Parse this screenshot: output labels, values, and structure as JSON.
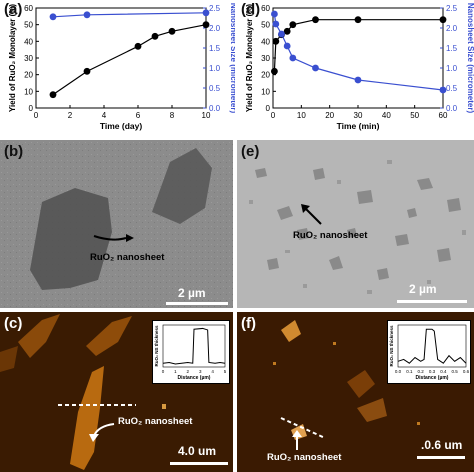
{
  "panels": {
    "a": {
      "tag": "(a)",
      "ylabel_left": "Yield of RuO₂ Monolayer (%)",
      "ylabel_right": "Nanosheet Size (micrometer)",
      "xlabel": "Time (day)"
    },
    "b": {
      "tag": "(b)",
      "label": "RuO₂ nanosheet",
      "scale": "2 µm"
    },
    "c": {
      "tag": "(c)",
      "label": "RuO₂ nanosheet",
      "scale": "4.0 um",
      "inset_ylabel": "RuO₂ NS thickness",
      "inset_xlabel": "Distance (µm)"
    },
    "d": {
      "tag": "(d)",
      "ylabel_left": "Yield of RuO₂ Monolayer (%)",
      "ylabel_right": "Nanosheet Size (micrometer)",
      "xlabel": "Time (min)"
    },
    "e": {
      "tag": "(e)",
      "label": "RuO₂ nanosheet",
      "scale": "2 µm"
    },
    "f": {
      "tag": "(f)",
      "label": "RuO₂ nanosheet",
      "scale": ".0.6 um",
      "inset_ylabel": "RuO₂ NS thickness",
      "inset_xlabel": "Distance (µm)"
    }
  },
  "chart_data": [
    {
      "type": "line",
      "panel": "a",
      "xlabel": "Time (day)",
      "ylabel": "Yield of RuO₂ Monolayer (%)",
      "y2label": "Nanosheet Size (micrometer)",
      "xlim": [
        0,
        10
      ],
      "ylim": [
        0,
        60
      ],
      "y2lim": [
        0,
        2.5
      ],
      "xticks": [
        "0",
        "2",
        "4",
        "6",
        "8",
        "10"
      ],
      "yticks": [
        "0",
        "10",
        "20",
        "30",
        "40",
        "50",
        "60"
      ],
      "y2ticks": [
        "0.0",
        "0.5",
        "1.0",
        "1.5",
        "2.0",
        "2.5"
      ],
      "series": [
        {
          "axis": "left",
          "color": "#000000",
          "x": [
            1,
            3,
            6,
            7,
            8,
            10
          ],
          "y": [
            8,
            22,
            37,
            43,
            46,
            50
          ]
        },
        {
          "axis": "right",
          "color": "#3a4fd0",
          "x": [
            1,
            3,
            10
          ],
          "y": [
            2.28,
            2.33,
            2.38
          ]
        }
      ]
    },
    {
      "type": "line",
      "panel": "d",
      "xlabel": "Time (min)",
      "ylabel": "Yield of RuO₂ Monolayer (%)",
      "y2label": "Nanosheet Size (micrometer)",
      "xlim": [
        0,
        60
      ],
      "ylim": [
        0,
        60
      ],
      "y2lim": [
        0,
        2.5
      ],
      "xticks": [
        "0",
        "10",
        "20",
        "30",
        "40",
        "50",
        "60"
      ],
      "yticks": [
        "0",
        "10",
        "20",
        "30",
        "40",
        "50",
        "60"
      ],
      "y2ticks": [
        "0.0",
        "0.5",
        "1.0",
        "1.5",
        "2.0",
        "2.5"
      ],
      "series": [
        {
          "axis": "left",
          "color": "#000000",
          "x": [
            0.5,
            1,
            3,
            5,
            7,
            15,
            30,
            60
          ],
          "y": [
            22,
            40,
            44,
            46,
            50,
            53,
            53,
            53
          ]
        },
        {
          "axis": "right",
          "color": "#3a4fd0",
          "x": [
            0.5,
            1,
            3,
            5,
            7,
            15,
            30,
            60
          ],
          "y": [
            2.35,
            2.1,
            1.85,
            1.55,
            1.25,
            1.0,
            0.7,
            0.45
          ]
        }
      ]
    },
    {
      "type": "line",
      "panel": "c-inset",
      "xlabel": "Distance (µm)",
      "ylabel": "RuO₂ NS thickness",
      "xticks": [
        "0",
        "1",
        "2",
        "3",
        "4",
        "5"
      ],
      "series": [
        {
          "color": "#000000",
          "x": [
            0,
            0.5,
            1,
            1.5,
            2,
            2.4,
            2.5,
            3.2,
            3.6,
            3.7,
            4.2,
            4.6,
            5
          ],
          "y": [
            0.1,
            0.12,
            0.08,
            0.1,
            0.12,
            0.1,
            1.0,
            1.02,
            0.98,
            0.12,
            0.1,
            0.12,
            0.1
          ]
        }
      ]
    },
    {
      "type": "line",
      "panel": "f-inset",
      "xlabel": "Distance (µm)",
      "ylabel": "RuO₂ NS thickness",
      "xticks": [
        "0.0",
        "0.1",
        "0.2",
        "0.3",
        "0.4",
        "0.5",
        "0.6"
      ],
      "series": [
        {
          "color": "#000000",
          "x": [
            0,
            0.05,
            0.1,
            0.15,
            0.2,
            0.23,
            0.25,
            0.3,
            0.32,
            0.35,
            0.4,
            0.45,
            0.5,
            0.55,
            0.6
          ],
          "y": [
            0.15,
            0.2,
            0.1,
            0.25,
            0.15,
            0.2,
            1.0,
            1.0,
            0.95,
            0.2,
            0.1,
            0.3,
            0.15,
            0.25,
            0.1
          ]
        }
      ]
    }
  ]
}
